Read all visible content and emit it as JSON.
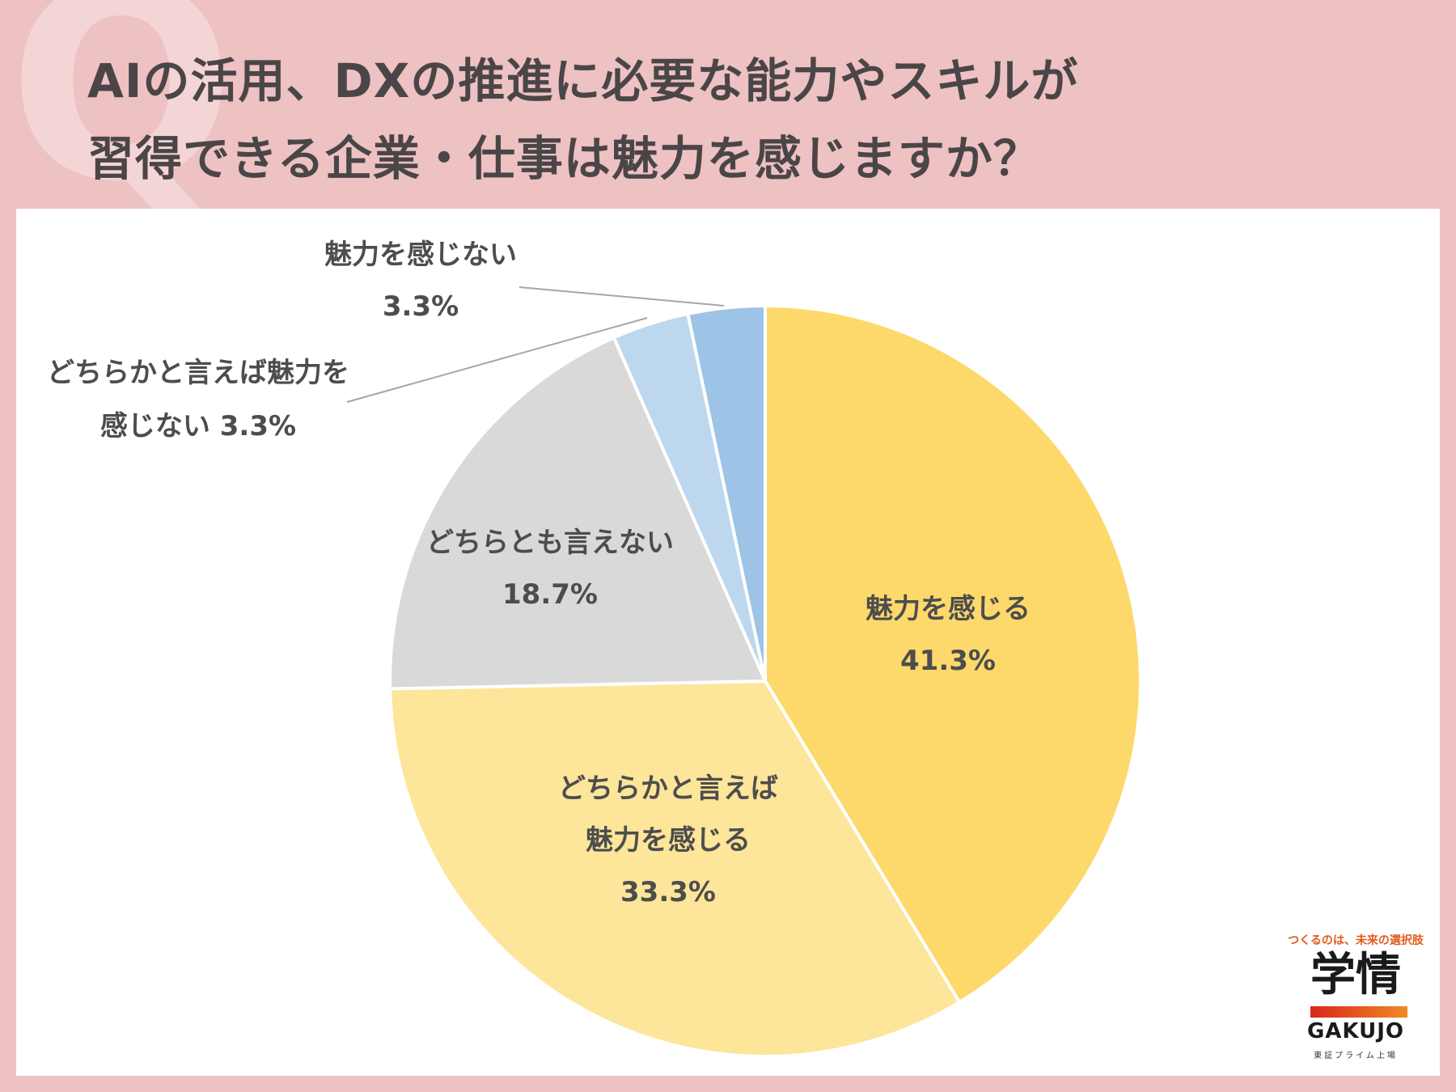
{
  "title": {
    "line1": "AIの活用、DXの推進に必要な能力やスキルが",
    "line2": "習得できる企業・仕事は魅力を感じますか？"
  },
  "background_glyph": "Q",
  "colors": {
    "background": "#eec1c3",
    "panel": "#ffffff",
    "slices": [
      "#fdd96b",
      "#fde59a",
      "#d9d9d9",
      "#bdd7ee",
      "#9dc3e6"
    ]
  },
  "chart_data": {
    "type": "pie",
    "title": "AIの活用、DXの推進に必要な能力やスキルが習得できる企業・仕事は魅力を感じますか？",
    "start_angle": "12 o'clock",
    "direction": "clockwise",
    "unit": "%",
    "slices": [
      {
        "label": "魅力を感じる",
        "value": 41.3,
        "label_lines": [
          "魅力を感じる",
          "41.3%"
        ],
        "color": "#fdd96b"
      },
      {
        "label": "どちらかと言えば魅力を感じる",
        "value": 33.3,
        "label_lines": [
          "どちらかと言えば",
          "魅力を感じる",
          "33.3%"
        ],
        "color": "#fde59a"
      },
      {
        "label": "どちらとも言えない",
        "value": 18.7,
        "label_lines": [
          "どちらとも言えない",
          "18.7%"
        ],
        "color": "#d9d9d9"
      },
      {
        "label": "どちらかと言えば魅力を感じない",
        "value": 3.3,
        "label_lines": [
          "どちらかと言えば魅力を",
          "感じない 3.3%"
        ],
        "color": "#bdd7ee"
      },
      {
        "label": "魅力を感じない",
        "value": 3.3,
        "label_lines": [
          "魅力を感じない",
          "3.3%"
        ],
        "color": "#9dc3e6"
      }
    ]
  },
  "logo": {
    "tagline": "つくるのは、未来の選択肢",
    "kanji": "学情",
    "english": "GAKUJO",
    "sub": "東証プライム上場"
  }
}
